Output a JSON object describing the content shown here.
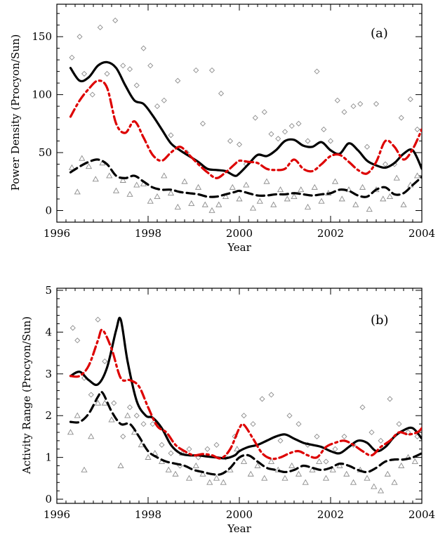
{
  "chart_data": [
    {
      "type": "scatter",
      "panel_label": "(a)",
      "xlabel": "Year",
      "ylabel": "Power Density (Procyon/Sun)",
      "xlim": [
        1996,
        2004
      ],
      "ylim": [
        -10,
        178
      ],
      "xticks": [
        1996,
        1998,
        2000,
        2002,
        2004
      ],
      "yticks": [
        0,
        50,
        100,
        150
      ],
      "grid": false,
      "colors": {
        "solid": "#000000",
        "dashdot": "#dd0000",
        "dashed": "#000000",
        "markers": "#8c8c8c"
      },
      "series": [
        {
          "style": "solid",
          "x": [
            1996.3,
            1996.5,
            1996.7,
            1996.9,
            1997.1,
            1997.3,
            1997.5,
            1997.7,
            1997.9,
            1998.1,
            1998.3,
            1998.5,
            1998.7,
            1998.9,
            1999.1,
            1999.3,
            1999.5,
            1999.7,
            1999.9,
            2000.0,
            2000.2,
            2000.4,
            2000.6,
            2000.8,
            2001.0,
            2001.2,
            2001.4,
            2001.6,
            2001.8,
            2002.0,
            2002.2,
            2002.4,
            2002.6,
            2002.8,
            2003.0,
            2003.2,
            2003.4,
            2003.6,
            2003.8,
            2004.0
          ],
          "y": [
            123,
            112,
            115,
            125,
            128,
            123,
            108,
            95,
            92,
            82,
            70,
            58,
            52,
            47,
            42,
            36,
            35,
            34,
            30,
            32,
            40,
            48,
            47,
            52,
            60,
            61,
            56,
            55,
            59,
            52,
            49,
            58,
            52,
            43,
            39,
            37,
            41,
            49,
            52,
            36
          ]
        },
        {
          "style": "dashdot",
          "x": [
            1996.3,
            1996.5,
            1996.7,
            1996.9,
            1997.1,
            1997.3,
            1997.5,
            1997.7,
            1997.9,
            1998.1,
            1998.3,
            1998.5,
            1998.7,
            1998.9,
            1999.1,
            1999.3,
            1999.5,
            1999.7,
            1999.9,
            2000.0,
            2000.2,
            2000.4,
            2000.6,
            2000.8,
            2001.0,
            2001.2,
            2001.4,
            2001.6,
            2001.8,
            2002.0,
            2002.2,
            2002.4,
            2002.6,
            2002.8,
            2003.0,
            2003.2,
            2003.4,
            2003.6,
            2003.8,
            2004.0
          ],
          "y": [
            81,
            95,
            105,
            112,
            106,
            75,
            67,
            77,
            63,
            48,
            43,
            50,
            55,
            48,
            40,
            33,
            28,
            33,
            40,
            43,
            42,
            41,
            36,
            35,
            36,
            44,
            36,
            34,
            40,
            47,
            48,
            42,
            35,
            32,
            42,
            60,
            55,
            44,
            53,
            70
          ]
        },
        {
          "style": "dashed",
          "x": [
            1996.3,
            1996.5,
            1996.7,
            1996.9,
            1997.1,
            1997.3,
            1997.5,
            1997.7,
            1997.9,
            1998.1,
            1998.3,
            1998.5,
            1998.7,
            1998.9,
            1999.1,
            1999.3,
            1999.5,
            1999.7,
            1999.9,
            2000.0,
            2000.2,
            2000.4,
            2000.6,
            2000.8,
            2001.0,
            2001.2,
            2001.4,
            2001.6,
            2001.8,
            2002.0,
            2002.2,
            2002.4,
            2002.6,
            2002.8,
            2003.0,
            2003.2,
            2003.4,
            2003.6,
            2003.8,
            2004.0
          ],
          "y": [
            33,
            38,
            42,
            44,
            40,
            30,
            28,
            30,
            25,
            20,
            18,
            18,
            16,
            15,
            14,
            12,
            12,
            14,
            16,
            17,
            15,
            13,
            13,
            14,
            14,
            15,
            14,
            13,
            14,
            15,
            18,
            17,
            13,
            12,
            18,
            20,
            14,
            15,
            22,
            29
          ]
        },
        {
          "style": "diamond-markers",
          "x": [
            1996.33,
            1996.5,
            1996.6,
            1996.78,
            1996.95,
            1997.1,
            1997.28,
            1997.45,
            1997.6,
            1997.75,
            1997.9,
            1998.05,
            1998.2,
            1998.35,
            1998.5,
            1998.65,
            1998.85,
            1999.05,
            1999.2,
            1999.4,
            1999.6,
            1999.8,
            2000.0,
            2000.15,
            2000.35,
            2000.55,
            2000.7,
            2000.85,
            2001.0,
            2001.15,
            2001.3,
            2001.5,
            2001.7,
            2001.85,
            2002.0,
            2002.15,
            2002.3,
            2002.5,
            2002.65,
            2002.8,
            2003.0,
            2003.2,
            2003.4,
            2003.55,
            2003.75,
            2003.9
          ],
          "y": [
            132,
            150,
            118,
            100,
            158,
            118,
            164,
            125,
            122,
            108,
            140,
            125,
            90,
            95,
            65,
            112,
            50,
            121,
            75,
            121,
            101,
            60,
            57,
            40,
            80,
            85,
            66,
            62,
            68,
            73,
            75,
            60,
            120,
            70,
            60,
            95,
            85,
            90,
            92,
            55,
            92,
            40,
            40,
            80,
            96,
            70
          ]
        },
        {
          "style": "triangle-markers",
          "x": [
            1996.33,
            1996.45,
            1996.55,
            1996.7,
            1996.85,
            1997.0,
            1997.15,
            1997.3,
            1997.45,
            1997.6,
            1997.75,
            1997.9,
            1998.05,
            1998.2,
            1998.35,
            1998.5,
            1998.65,
            1998.8,
            1998.95,
            1999.1,
            1999.25,
            1999.4,
            1999.55,
            1999.7,
            1999.85,
            2000.0,
            2000.15,
            2000.3,
            2000.45,
            2000.6,
            2000.75,
            2000.9,
            2001.05,
            2001.2,
            2001.35,
            2001.5,
            2001.65,
            2001.8,
            2001.95,
            2002.1,
            2002.25,
            2002.4,
            2002.55,
            2002.7,
            2002.85,
            2003.0,
            2003.15,
            2003.3,
            2003.45,
            2003.6,
            2003.75,
            2003.9
          ],
          "y": [
            37,
            16,
            45,
            38,
            27,
            41,
            30,
            17,
            26,
            14,
            22,
            23,
            8,
            12,
            30,
            15,
            3,
            25,
            6,
            20,
            5,
            0,
            5,
            12,
            20,
            10,
            22,
            2,
            8,
            25,
            5,
            18,
            10,
            12,
            18,
            3,
            20,
            8,
            15,
            25,
            10,
            18,
            5,
            20,
            1,
            18,
            10,
            12,
            28,
            5,
            22,
            30
          ]
        }
      ]
    },
    {
      "type": "scatter",
      "panel_label": "(b)",
      "xlabel": "Year",
      "ylabel": "Activity Range (Procyon/Sun)",
      "xlim": [
        1996,
        2004
      ],
      "ylim": [
        -0.1,
        5.05
      ],
      "xticks": [
        1996,
        1998,
        2000,
        2002,
        2004
      ],
      "yticks": [
        0,
        1,
        2,
        3,
        4,
        5
      ],
      "grid": false,
      "colors": {
        "solid": "#000000",
        "dashdot": "#dd0000",
        "dashed": "#000000",
        "markers": "#8c8c8c"
      },
      "series": [
        {
          "style": "solid",
          "x": [
            1996.3,
            1996.5,
            1996.7,
            1996.9,
            1997.1,
            1997.3,
            1997.4,
            1997.55,
            1997.75,
            1997.95,
            1998.1,
            1998.3,
            1998.5,
            1998.7,
            1998.9,
            1999.1,
            1999.3,
            1999.5,
            1999.7,
            1999.9,
            2000.0,
            2000.2,
            2000.4,
            2000.6,
            2000.8,
            2001.0,
            2001.2,
            2001.4,
            2001.6,
            2001.8,
            2002.0,
            2002.2,
            2002.4,
            2002.6,
            2002.8,
            2003.0,
            2003.2,
            2003.4,
            2003.6,
            2003.8,
            2004.0
          ],
          "y": [
            2.95,
            3.05,
            2.85,
            2.75,
            3.15,
            4.05,
            4.3,
            3.3,
            2.35,
            2.0,
            1.95,
            1.7,
            1.3,
            1.1,
            1.05,
            1.05,
            1.02,
            1.0,
            0.98,
            1.05,
            1.15,
            1.25,
            1.3,
            1.4,
            1.5,
            1.55,
            1.45,
            1.35,
            1.3,
            1.25,
            1.15,
            1.1,
            1.25,
            1.4,
            1.35,
            1.15,
            1.25,
            1.5,
            1.65,
            1.7,
            1.45
          ]
        },
        {
          "style": "dashdot",
          "x": [
            1996.3,
            1996.5,
            1996.7,
            1996.9,
            1997.0,
            1997.2,
            1997.4,
            1997.6,
            1997.8,
            1998.0,
            1998.2,
            1998.4,
            1998.6,
            1998.8,
            1999.0,
            1999.2,
            1999.4,
            1999.6,
            1999.8,
            2000.0,
            2000.1,
            2000.3,
            2000.5,
            2000.7,
            2000.9,
            2001.1,
            2001.3,
            2001.5,
            2001.7,
            2001.9,
            2002.1,
            2002.3,
            2002.5,
            2002.7,
            2002.9,
            2003.1,
            2003.3,
            2003.5,
            2003.7,
            2003.9,
            2004.0
          ],
          "y": [
            2.95,
            2.95,
            3.2,
            3.8,
            4.05,
            3.6,
            2.9,
            2.85,
            2.7,
            2.2,
            1.75,
            1.6,
            1.3,
            1.15,
            1.05,
            1.08,
            1.05,
            0.98,
            1.2,
            1.7,
            1.78,
            1.45,
            1.1,
            0.97,
            1.0,
            1.1,
            1.15,
            1.05,
            1.0,
            1.25,
            1.35,
            1.4,
            1.3,
            1.15,
            1.05,
            1.25,
            1.4,
            1.6,
            1.55,
            1.6,
            1.7
          ]
        },
        {
          "style": "dashed",
          "x": [
            1996.3,
            1996.5,
            1996.7,
            1996.9,
            1997.0,
            1997.2,
            1997.4,
            1997.6,
            1997.8,
            1998.0,
            1998.2,
            1998.4,
            1998.6,
            1998.8,
            1999.0,
            1999.2,
            1999.4,
            1999.6,
            1999.8,
            2000.0,
            2000.2,
            2000.4,
            2000.6,
            2000.8,
            2001.0,
            2001.2,
            2001.4,
            2001.6,
            2001.8,
            2002.0,
            2002.2,
            2002.4,
            2002.6,
            2002.8,
            2003.0,
            2003.2,
            2003.4,
            2003.6,
            2003.8,
            2004.0
          ],
          "y": [
            1.85,
            1.85,
            2.05,
            2.45,
            2.55,
            2.1,
            1.8,
            1.8,
            1.5,
            1.15,
            1.0,
            0.9,
            0.85,
            0.8,
            0.7,
            0.65,
            0.6,
            0.6,
            0.75,
            1.0,
            1.05,
            0.9,
            0.75,
            0.7,
            0.65,
            0.7,
            0.8,
            0.75,
            0.7,
            0.75,
            0.85,
            0.8,
            0.7,
            0.65,
            0.75,
            0.9,
            0.95,
            0.95,
            1.0,
            1.1
          ]
        },
        {
          "style": "diamond-markers",
          "x": [
            1996.35,
            1996.45,
            1996.6,
            1996.75,
            1996.9,
            1997.05,
            1997.25,
            1997.45,
            1997.6,
            1997.75,
            1997.9,
            1998.1,
            1998.3,
            1998.5,
            1998.7,
            1998.9,
            1999.1,
            1999.3,
            1999.5,
            1999.7,
            1999.9,
            2000.1,
            2000.3,
            2000.5,
            2000.7,
            2000.9,
            2001.1,
            2001.3,
            2001.5,
            2001.7,
            2001.9,
            2002.1,
            2002.3,
            2002.5,
            2002.7,
            2002.9,
            2003.1,
            2003.3,
            2003.5,
            2003.7,
            2003.9
          ],
          "y": [
            4.1,
            3.8,
            2.9,
            2.5,
            4.3,
            3.3,
            2.3,
            1.5,
            2.2,
            2.0,
            1.8,
            1.8,
            1.3,
            1.1,
            0.8,
            1.2,
            1.0,
            1.2,
            1.3,
            1.0,
            1.5,
            2.0,
            1.8,
            2.4,
            2.5,
            1.4,
            2.0,
            1.8,
            1.3,
            1.5,
            0.9,
            1.2,
            1.5,
            1.3,
            2.2,
            1.6,
            1.4,
            2.4,
            1.8,
            1.6,
            1.5
          ]
        },
        {
          "style": "triangle-markers",
          "x": [
            1996.3,
            1996.45,
            1996.6,
            1996.75,
            1996.9,
            1997.05,
            1997.2,
            1997.4,
            1997.55,
            1997.7,
            1997.85,
            1998.0,
            1998.15,
            1998.3,
            1998.45,
            1998.6,
            1998.75,
            1998.9,
            1999.05,
            1999.2,
            1999.35,
            1999.5,
            1999.65,
            1999.8,
            1999.95,
            2000.1,
            2000.25,
            2000.4,
            2000.55,
            2000.7,
            2000.85,
            2001.0,
            2001.15,
            2001.3,
            2001.45,
            2001.6,
            2001.75,
            2001.9,
            2002.05,
            2002.2,
            2002.35,
            2002.5,
            2002.65,
            2002.8,
            2002.95,
            2003.1,
            2003.25,
            2003.4,
            2003.55,
            2003.7,
            2003.85
          ],
          "y": [
            1.6,
            2.0,
            0.7,
            1.5,
            2.3,
            2.3,
            1.9,
            0.8,
            2.0,
            1.6,
            1.3,
            1.0,
            1.1,
            0.9,
            0.7,
            0.6,
            1.1,
            0.5,
            0.8,
            0.6,
            0.4,
            0.5,
            0.4,
            0.7,
            1.2,
            0.9,
            0.6,
            0.8,
            0.5,
            0.9,
            0.7,
            0.5,
            0.8,
            0.6,
            0.4,
            0.7,
            0.9,
            0.5,
            0.7,
            0.8,
            0.6,
            0.4,
            0.7,
            0.5,
            0.3,
            0.2,
            0.6,
            0.4,
            0.8,
            1.0,
            0.9
          ]
        }
      ]
    }
  ]
}
